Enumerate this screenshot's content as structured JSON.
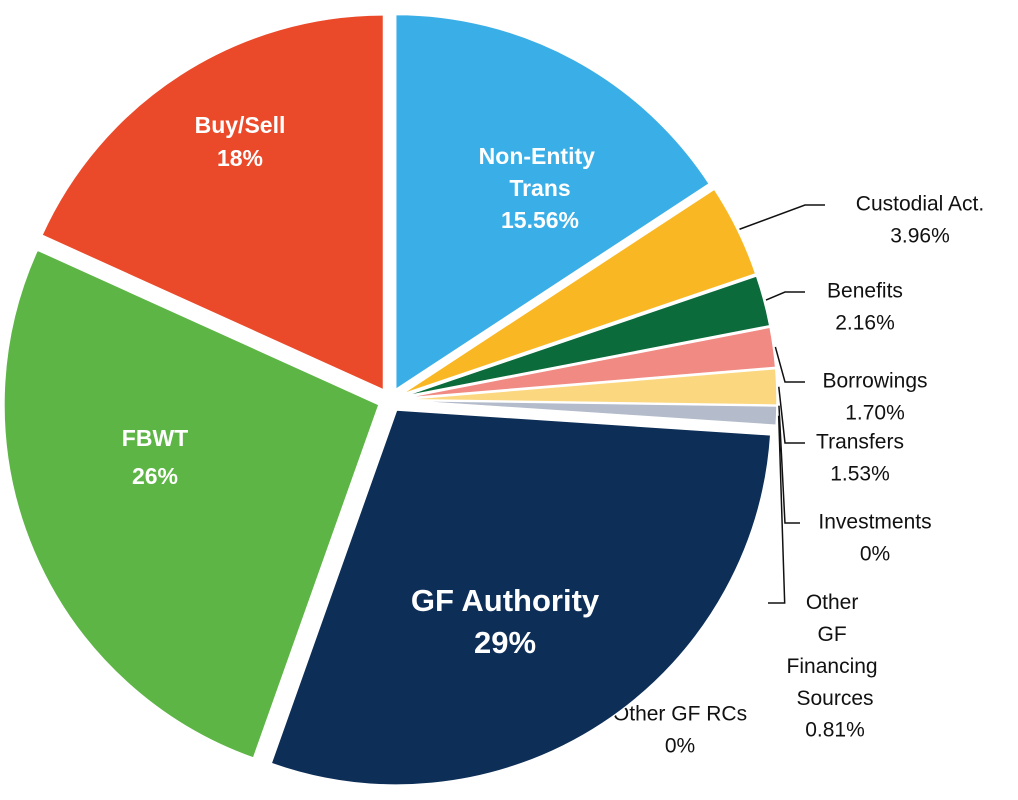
{
  "chart_data": {
    "type": "pie",
    "categories": [
      "Non-Entity Trans",
      "Custodial Act.",
      "Benefits",
      "Borrowings",
      "Transfers",
      "Investments",
      "Other GF Financing Sources",
      "Other GF RCs",
      "GF Authority",
      "FBWT",
      "Buy/Sell"
    ],
    "values": [
      15.56,
      3.96,
      2.16,
      1.7,
      1.53,
      0,
      0.81,
      0,
      29,
      26,
      18
    ],
    "value_labels": [
      "15.56%",
      "3.96%",
      "2.16%",
      "1.70%",
      "1.53%",
      "0%",
      "0.81%",
      "0%",
      "29%",
      "26%",
      "18%"
    ],
    "colors": [
      "#3aaee6",
      "#f9b823",
      "#0c6b3a",
      "#f08a82",
      "#fbd77f",
      "#7a8cb8",
      "#b4bccb",
      "#f2f2f2",
      "#0d2e57",
      "#5cb545",
      "#ea4a2a"
    ]
  }
}
